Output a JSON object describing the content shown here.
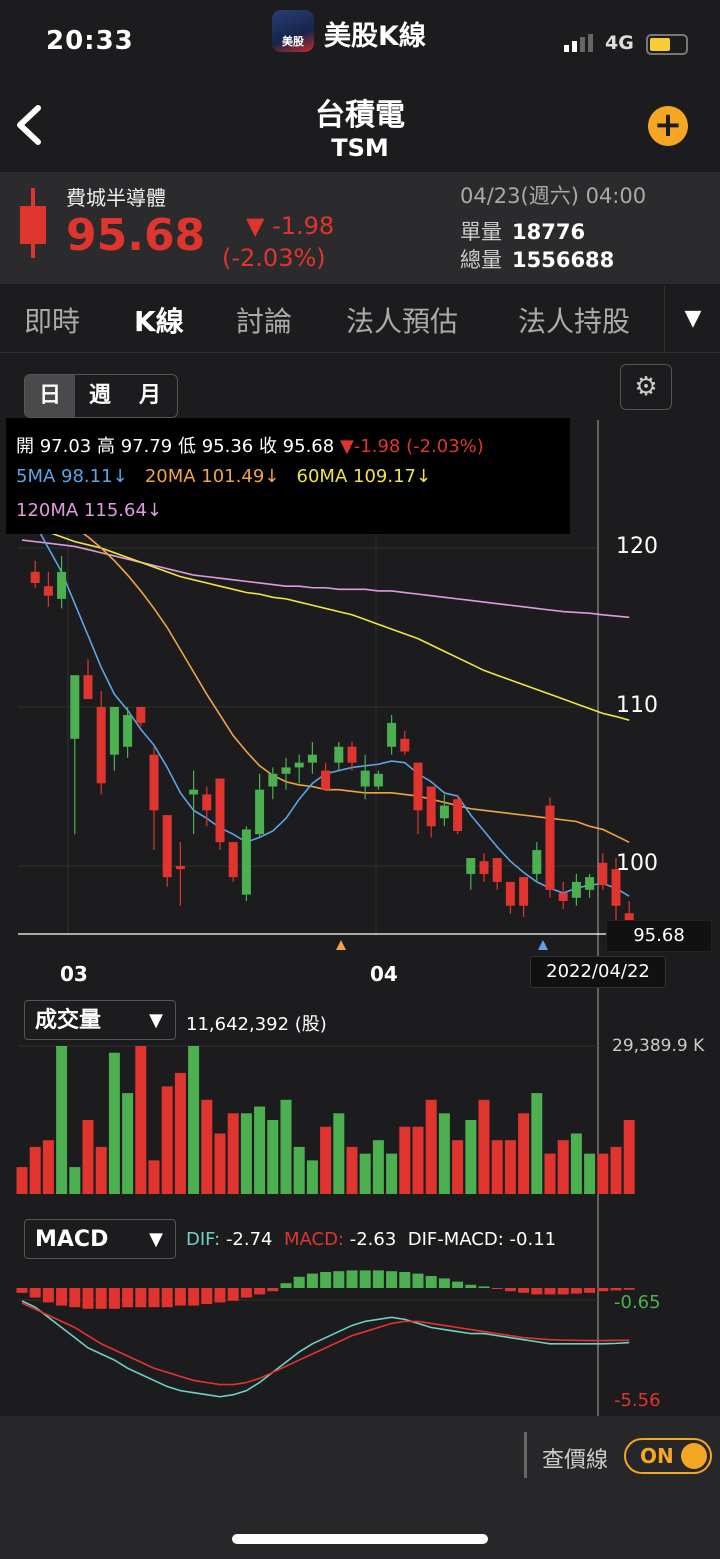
{
  "status": {
    "time": "20:33",
    "network": "4G"
  },
  "app": {
    "title": "美股K線",
    "badge": "美股"
  },
  "stock": {
    "name": "台積電",
    "code": "TSM"
  },
  "quote": {
    "index_name": "費城半導體",
    "price": "95.68",
    "change": "▼ -1.98",
    "change_pct": "(-2.03%)",
    "datetime": "04/23(週六) 04:00",
    "single_vol_label": "單量",
    "single_vol": "18776",
    "total_vol_label": "總量",
    "total_vol": "1556688"
  },
  "tabs": [
    "即時",
    "K線",
    "討論",
    "法人預估",
    "法人持股"
  ],
  "tab_more": "▼",
  "period": [
    "日",
    "週",
    "月"
  ],
  "info": {
    "row1": [
      {
        "t": "開",
        "c": "#ffffff"
      },
      {
        "t": " 97.03 ",
        "c": "#ffffff"
      },
      {
        "t": "高",
        "c": "#ffffff"
      },
      {
        "t": " 97.79 ",
        "c": "#ffffff"
      },
      {
        "t": "低",
        "c": "#ffffff"
      },
      {
        "t": " 95.36 ",
        "c": "#ffffff"
      },
      {
        "t": "收",
        "c": "#ffffff"
      },
      {
        "t": " 95.68 ",
        "c": "#ffffff"
      },
      {
        "t": "▼-1.98 (-2.03%)",
        "c": "#e0352f"
      }
    ],
    "ma5": "5MA 98.11↓",
    "ma20": "20MA 101.49↓",
    "ma60": "60MA 109.17↓",
    "ma120": "120MA 115.64↓"
  },
  "colors": {
    "up": "#e0352f",
    "down": "#4caf50",
    "ma5": "#5ba4e6",
    "ma20": "#f0a446",
    "ma60": "#f0e442",
    "ma120": "#e09ae0",
    "dif": "#6fd0c8",
    "macd": "#e0352f"
  },
  "axis": {
    "y_labels": [
      "120",
      "110",
      "100"
    ],
    "x_labels": [
      "03",
      "04"
    ]
  },
  "crosshair": {
    "price": "95.68",
    "date": "2022/04/22"
  },
  "volume": {
    "selector": "成交量",
    "value": "11,642,392 (股)",
    "max_label": "29,389.9 K"
  },
  "macd": {
    "selector": "MACD",
    "dif_label": "DIF:",
    "dif": "-2.74",
    "macd_label": "MACD:",
    "macd": "-2.63",
    "diffmacd_label": "DIF-MACD:",
    "diffmacd": "-0.11",
    "y_top": "-0.65",
    "y_bottom": "-5.56"
  },
  "footer": {
    "ref_line": "查價線",
    "toggle": "ON"
  },
  "chart_data": {
    "type": "candlestick",
    "ylim": [
      95,
      123
    ],
    "candles": [
      {
        "o": 122,
        "h": 123,
        "l": 121,
        "c": 121.2
      },
      {
        "o": 118.5,
        "h": 119.2,
        "l": 117.5,
        "c": 117.8
      },
      {
        "o": 117.6,
        "h": 118.5,
        "l": 116.3,
        "c": 117
      },
      {
        "o": 116.8,
        "h": 119.5,
        "l": 116.2,
        "c": 118.5
      },
      {
        "o": 108,
        "h": 112,
        "l": 102,
        "c": 112
      },
      {
        "o": 112,
        "h": 113,
        "l": 110.5,
        "c": 110.5
      },
      {
        "o": 110,
        "h": 111,
        "l": 104.5,
        "c": 105.2
      },
      {
        "o": 107,
        "h": 110,
        "l": 106,
        "c": 110
      },
      {
        "o": 107.5,
        "h": 110,
        "l": 106.8,
        "c": 109.5
      },
      {
        "o": 110,
        "h": 110,
        "l": 108.8,
        "c": 109
      },
      {
        "o": 107,
        "h": 107.5,
        "l": 101,
        "c": 103.5
      },
      {
        "o": 103.2,
        "h": 103.2,
        "l": 98.7,
        "c": 99.3
      },
      {
        "o": 100,
        "h": 101.5,
        "l": 97.5,
        "c": 99.8
      },
      {
        "o": 104.5,
        "h": 106,
        "l": 102,
        "c": 104.8
      },
      {
        "o": 104.5,
        "h": 105,
        "l": 102.5,
        "c": 103.5
      },
      {
        "o": 105.5,
        "h": 105.5,
        "l": 101,
        "c": 101.5
      },
      {
        "o": 101.5,
        "h": 101.5,
        "l": 99,
        "c": 99.3
      },
      {
        "o": 98.2,
        "h": 102.5,
        "l": 97.8,
        "c": 102.3
      },
      {
        "o": 102,
        "h": 105.8,
        "l": 101.8,
        "c": 104.8
      },
      {
        "o": 105,
        "h": 106.2,
        "l": 104.2,
        "c": 105.8
      },
      {
        "o": 105.8,
        "h": 106.8,
        "l": 104.8,
        "c": 106.2
      },
      {
        "o": 106.2,
        "h": 107,
        "l": 105.2,
        "c": 106.5
      },
      {
        "o": 106.5,
        "h": 107.8,
        "l": 105.8,
        "c": 107
      },
      {
        "o": 106,
        "h": 106.5,
        "l": 104.8,
        "c": 104.8
      },
      {
        "o": 106.5,
        "h": 107.8,
        "l": 106,
        "c": 107.5
      },
      {
        "o": 107.5,
        "h": 107.8,
        "l": 106,
        "c": 106.5
      },
      {
        "o": 105,
        "h": 107,
        "l": 104.2,
        "c": 106
      },
      {
        "o": 105,
        "h": 106,
        "l": 104.8,
        "c": 105.8
      },
      {
        "o": 107.5,
        "h": 109.5,
        "l": 107,
        "c": 109
      },
      {
        "o": 108,
        "h": 108.5,
        "l": 107,
        "c": 107.2
      },
      {
        "o": 106.5,
        "h": 106.5,
        "l": 102,
        "c": 103.5
      },
      {
        "o": 105,
        "h": 105,
        "l": 101.8,
        "c": 102.5
      },
      {
        "o": 103,
        "h": 104.5,
        "l": 102.5,
        "c": 103.8
      },
      {
        "o": 104.2,
        "h": 104.5,
        "l": 102,
        "c": 102.2
      },
      {
        "o": 99.5,
        "h": 100.5,
        "l": 98.5,
        "c": 100.5
      },
      {
        "o": 100.3,
        "h": 100.8,
        "l": 99,
        "c": 99.5
      },
      {
        "o": 100.5,
        "h": 100.5,
        "l": 98.5,
        "c": 99
      },
      {
        "o": 99,
        "h": 99,
        "l": 97,
        "c": 97.5
      },
      {
        "o": 99.3,
        "h": 99.3,
        "l": 96.8,
        "c": 97.5
      },
      {
        "o": 99.5,
        "h": 101.5,
        "l": 99,
        "c": 101
      },
      {
        "o": 103.8,
        "h": 104.3,
        "l": 98,
        "c": 98.5
      },
      {
        "o": 98.3,
        "h": 99,
        "l": 97.3,
        "c": 97.8
      },
      {
        "o": 98,
        "h": 99.5,
        "l": 97.5,
        "c": 99
      },
      {
        "o": 98.5,
        "h": 99.5,
        "l": 98,
        "c": 99.3
      },
      {
        "o": 100.2,
        "h": 100.8,
        "l": 98.5,
        "c": 98.8
      },
      {
        "o": 99.8,
        "h": 100.5,
        "l": 96.5,
        "c": 97.5
      },
      {
        "o": 97.03,
        "h": 97.79,
        "l": 95.36,
        "c": 95.68
      }
    ],
    "ma5": [
      122.5,
      121.5,
      120,
      118.5,
      116.5,
      114.5,
      112.5,
      110.8,
      109.8,
      108.6,
      107.6,
      106.2,
      104.6,
      103.5,
      103,
      102.4,
      102,
      101.5,
      101.8,
      102.2,
      103,
      104.2,
      105.2,
      105.8,
      106,
      106.2,
      106.3,
      106.4,
      106.6,
      106.5,
      105.8,
      105.3,
      104.6,
      104.4,
      103.2,
      102.2,
      101.2,
      100.3,
      99.6,
      99,
      98.6,
      98.3,
      98.6,
      98.8,
      98.9,
      98.6,
      98.1
    ],
    "ma20": [
      123,
      122.6,
      122.2,
      121.8,
      121.3,
      120.7,
      120,
      119.2,
      118.3,
      117.3,
      116.2,
      115,
      113.6,
      112.2,
      110.8,
      109.5,
      108.2,
      107.2,
      106.3,
      105.7,
      105.3,
      105.1,
      105,
      104.8,
      104.8,
      104.7,
      104.6,
      104.6,
      104.6,
      104.5,
      104.4,
      104.2,
      104,
      103.8,
      103.6,
      103.5,
      103.4,
      103.3,
      103.2,
      103.1,
      103,
      102.9,
      102.8,
      102.5,
      102.3,
      101.9,
      101.49
    ],
    "ma60": [
      122,
      121.5,
      121,
      120.7,
      120.4,
      120.2,
      120,
      119.7,
      119.4,
      119.1,
      118.8,
      118.5,
      118.2,
      118,
      117.8,
      117.6,
      117.4,
      117.2,
      117.1,
      116.9,
      116.8,
      116.6,
      116.4,
      116.2,
      116,
      115.8,
      115.5,
      115.2,
      114.9,
      114.6,
      114.3,
      113.9,
      113.5,
      113.1,
      112.7,
      112.3,
      112,
      111.7,
      111.4,
      111.1,
      110.8,
      110.5,
      110.2,
      109.9,
      109.6,
      109.4,
      109.17
    ],
    "ma120": [
      120.5,
      120.4,
      120.3,
      120.2,
      120.1,
      119.9,
      119.7,
      119.5,
      119.3,
      119.1,
      118.9,
      118.7,
      118.5,
      118.3,
      118.2,
      118.1,
      118,
      117.9,
      117.8,
      117.7,
      117.6,
      117.6,
      117.5,
      117.5,
      117.4,
      117.4,
      117.4,
      117.3,
      117.3,
      117.2,
      117.1,
      117,
      116.9,
      116.8,
      116.7,
      116.6,
      116.5,
      116.4,
      116.3,
      116.2,
      116.1,
      116,
      115.95,
      115.9,
      115.8,
      115.72,
      115.64
    ],
    "volume": [
      4,
      7,
      8,
      22,
      4,
      11,
      7,
      21,
      15,
      22,
      5,
      16,
      18,
      22,
      14,
      9,
      12,
      12,
      13,
      11,
      14,
      7,
      5,
      10,
      12,
      7,
      6,
      8,
      6,
      10,
      10,
      14,
      12,
      8,
      11,
      14,
      8,
      8,
      12,
      15,
      6,
      8,
      9,
      6,
      6,
      7,
      11
    ],
    "volume_max": 29389.9,
    "macd_hist": [
      -0.3,
      -0.6,
      -0.9,
      -1.1,
      -1.2,
      -1.3,
      -1.3,
      -1.3,
      -1.2,
      -1.2,
      -1.2,
      -1.2,
      -1.1,
      -1.1,
      -1,
      -0.9,
      -0.8,
      -0.6,
      -0.4,
      -0.2,
      0.3,
      0.7,
      0.9,
      1,
      1.05,
      1.1,
      1.1,
      1.1,
      1.05,
      1,
      0.9,
      0.75,
      0.6,
      0.4,
      0.2,
      0.1,
      -0.05,
      -0.2,
      -0.3,
      -0.4,
      -0.4,
      -0.4,
      -0.35,
      -0.3,
      -0.2,
      -0.15,
      -0.11
    ],
    "dif": [
      -0.7,
      -1,
      -1.5,
      -2,
      -2.5,
      -3,
      -3.3,
      -3.6,
      -4,
      -4.3,
      -4.6,
      -4.9,
      -5.1,
      -5.2,
      -5.3,
      -5.4,
      -5.3,
      -5.1,
      -4.7,
      -4.2,
      -3.7,
      -3.2,
      -2.8,
      -2.5,
      -2.2,
      -1.9,
      -1.7,
      -1.6,
      -1.5,
      -1.6,
      -1.8,
      -2,
      -2.1,
      -2.2,
      -2.3,
      -2.3,
      -2.4,
      -2.5,
      -2.6,
      -2.7,
      -2.8,
      -2.8,
      -2.8,
      -2.8,
      -2.8,
      -2.78,
      -2.74
    ],
    "macd_line": [
      -0.8,
      -1.1,
      -1.4,
      -1.7,
      -2,
      -2.4,
      -2.8,
      -3.1,
      -3.4,
      -3.7,
      -4,
      -4.2,
      -4.4,
      -4.6,
      -4.7,
      -4.8,
      -4.8,
      -4.7,
      -4.5,
      -4.2,
      -3.9,
      -3.6,
      -3.3,
      -3,
      -2.7,
      -2.4,
      -2.2,
      -2,
      -1.8,
      -1.7,
      -1.7,
      -1.8,
      -1.9,
      -2,
      -2.1,
      -2.2,
      -2.3,
      -2.4,
      -2.5,
      -2.55,
      -2.6,
      -2.62,
      -2.63,
      -2.64,
      -2.64,
      -2.63,
      -2.63
    ],
    "macd_ylim": [
      -5.56,
      -0.65
    ]
  }
}
